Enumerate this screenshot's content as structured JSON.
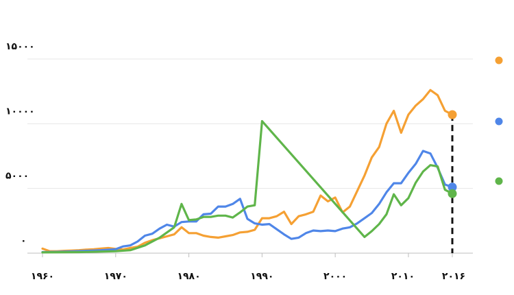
{
  "chart_data": {
    "type": "line",
    "title": "",
    "xlabel": "",
    "ylabel": "",
    "xlim": [
      1960,
      2016
    ],
    "ylim": [
      0,
      15000
    ],
    "y_ticks": [
      0,
      5000,
      10000,
      15000
    ],
    "y_tick_labels": [
      "٠",
      "۵٠٠٠",
      "١٠٠٠٠",
      "١۵٠٠٠"
    ],
    "x_ticks": [
      1960,
      1970,
      1980,
      1990,
      2000,
      2010,
      2016
    ],
    "x_tick_labels": [
      "١٩۶٠",
      "١٩٧٠",
      "١٩٨٠",
      "١٩٩٠",
      "٢٠٠٠",
      "٢٠١٠",
      "٢٠١۶"
    ],
    "grid": true,
    "legend_position": "right",
    "highlight_year": 2016,
    "series": [
      {
        "color": "#f5a033",
        "points": [
          [
            1960,
            350
          ],
          [
            1961,
            150
          ],
          [
            1962,
            150
          ],
          [
            1963,
            180
          ],
          [
            1964,
            200
          ],
          [
            1965,
            230
          ],
          [
            1966,
            270
          ],
          [
            1967,
            300
          ],
          [
            1968,
            350
          ],
          [
            1969,
            400
          ],
          [
            1970,
            330
          ],
          [
            1971,
            280
          ],
          [
            1972,
            400
          ],
          [
            1973,
            500
          ],
          [
            1974,
            800
          ],
          [
            1975,
            1000
          ],
          [
            1976,
            1150
          ],
          [
            1977,
            1300
          ],
          [
            1978,
            1450
          ],
          [
            1979,
            2000
          ],
          [
            1980,
            1550
          ],
          [
            1981,
            1550
          ],
          [
            1982,
            1350
          ],
          [
            1983,
            1250
          ],
          [
            1984,
            1200
          ],
          [
            1985,
            1300
          ],
          [
            1986,
            1400
          ],
          [
            1987,
            1600
          ],
          [
            1988,
            1650
          ],
          [
            1989,
            1800
          ],
          [
            1990,
            2700
          ],
          [
            1991,
            2700
          ],
          [
            1992,
            2850
          ],
          [
            1993,
            3200
          ],
          [
            1994,
            2250
          ],
          [
            1995,
            2850
          ],
          [
            1996,
            3000
          ],
          [
            1997,
            3200
          ],
          [
            1998,
            4450
          ],
          [
            1999,
            4000
          ],
          [
            2000,
            4300
          ],
          [
            2001,
            3150
          ],
          [
            2002,
            3600
          ],
          [
            2003,
            4800
          ],
          [
            2004,
            6000
          ],
          [
            2005,
            7400
          ],
          [
            2006,
            8200
          ],
          [
            2007,
            10000
          ],
          [
            2008,
            11000
          ],
          [
            2009,
            9300
          ],
          [
            2010,
            10700
          ],
          [
            2011,
            11400
          ],
          [
            2012,
            11900
          ],
          [
            2013,
            12600
          ],
          [
            2014,
            12200
          ],
          [
            2015,
            11000
          ],
          [
            2016,
            10700
          ]
        ]
      },
      {
        "color": "#4f86e8",
        "points": [
          [
            1960,
            80
          ],
          [
            1962,
            100
          ],
          [
            1964,
            130
          ],
          [
            1966,
            180
          ],
          [
            1968,
            230
          ],
          [
            1970,
            300
          ],
          [
            1971,
            520
          ],
          [
            1972,
            600
          ],
          [
            1973,
            900
          ],
          [
            1974,
            1350
          ],
          [
            1975,
            1500
          ],
          [
            1976,
            1900
          ],
          [
            1977,
            2200
          ],
          [
            1978,
            2050
          ],
          [
            1979,
            2400
          ],
          [
            1980,
            2450
          ],
          [
            1981,
            2450
          ],
          [
            1982,
            3000
          ],
          [
            1983,
            3050
          ],
          [
            1984,
            3600
          ],
          [
            1985,
            3600
          ],
          [
            1986,
            3800
          ],
          [
            1987,
            4200
          ],
          [
            1988,
            2650
          ],
          [
            1989,
            2300
          ],
          [
            1990,
            2200
          ],
          [
            1991,
            2250
          ],
          [
            1992,
            1850
          ],
          [
            1993,
            1450
          ],
          [
            1994,
            1100
          ],
          [
            1995,
            1200
          ],
          [
            1996,
            1550
          ],
          [
            1997,
            1750
          ],
          [
            1998,
            1700
          ],
          [
            1999,
            1750
          ],
          [
            2000,
            1700
          ],
          [
            2001,
            1900
          ],
          [
            2002,
            2000
          ],
          [
            2003,
            2300
          ],
          [
            2004,
            2700
          ],
          [
            2005,
            3100
          ],
          [
            2006,
            3800
          ],
          [
            2007,
            4700
          ],
          [
            2008,
            5400
          ],
          [
            2009,
            5400
          ],
          [
            2010,
            6200
          ],
          [
            2011,
            6900
          ],
          [
            2012,
            7900
          ],
          [
            2013,
            7700
          ],
          [
            2014,
            6600
          ],
          [
            2015,
            5300
          ],
          [
            2016,
            5100
          ]
        ]
      },
      {
        "color": "#5fb54a",
        "points": [
          [
            1960,
            60
          ],
          [
            1965,
            80
          ],
          [
            1970,
            150
          ],
          [
            1972,
            230
          ],
          [
            1974,
            600
          ],
          [
            1976,
            1200
          ],
          [
            1978,
            2000
          ],
          [
            1979,
            3800
          ],
          [
            1980,
            2550
          ],
          [
            1981,
            2600
          ],
          [
            1982,
            2800
          ],
          [
            1983,
            2800
          ],
          [
            1984,
            2900
          ],
          [
            1985,
            2900
          ],
          [
            1986,
            2750
          ],
          [
            1987,
            3150
          ],
          [
            1988,
            3600
          ],
          [
            1989,
            3700
          ],
          [
            1990,
            10200
          ],
          [
            2004,
            1250
          ],
          [
            2005,
            1700
          ],
          [
            2006,
            2250
          ],
          [
            2007,
            3000
          ],
          [
            2008,
            4550
          ],
          [
            2009,
            3700
          ],
          [
            2010,
            4250
          ],
          [
            2011,
            5450
          ],
          [
            2012,
            6300
          ],
          [
            2013,
            6800
          ],
          [
            2014,
            6700
          ],
          [
            2015,
            4900
          ],
          [
            2016,
            4600
          ]
        ]
      }
    ]
  }
}
